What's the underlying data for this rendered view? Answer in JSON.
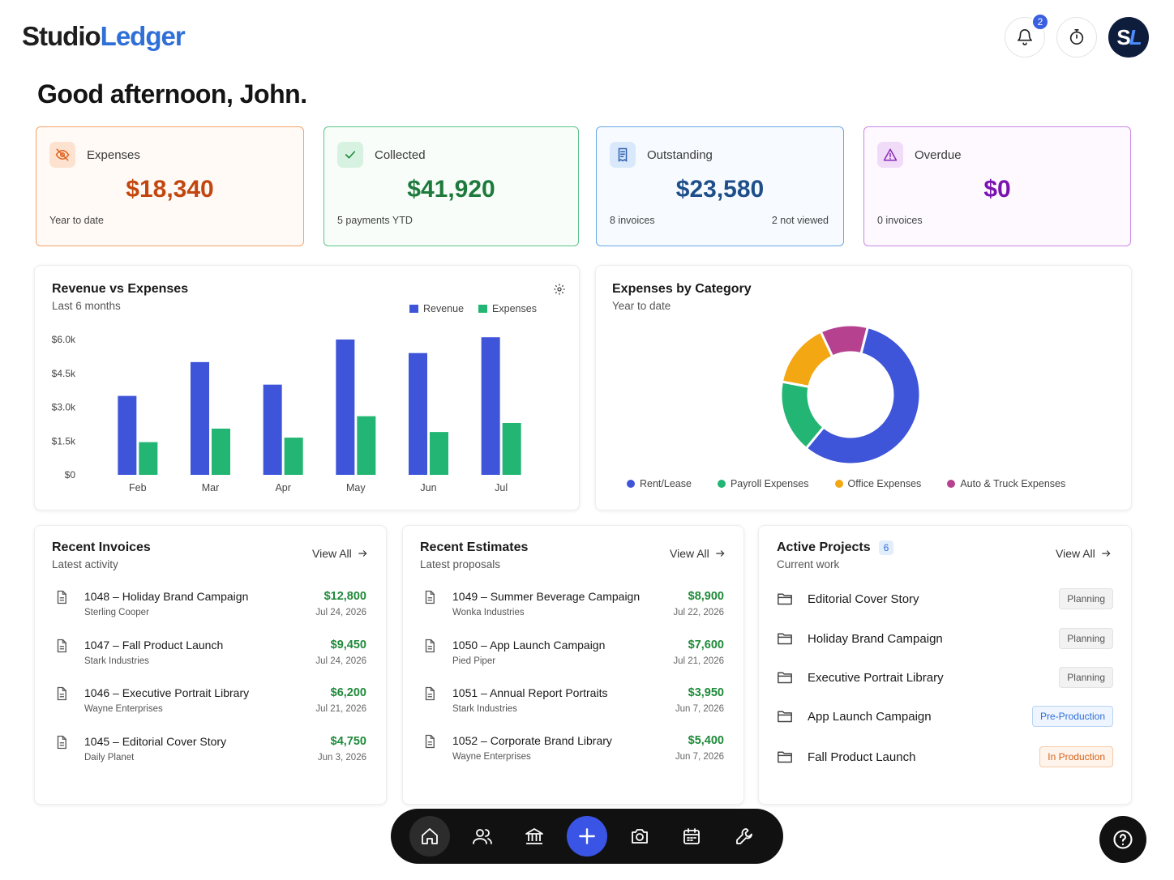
{
  "brand": {
    "part1": "Studio",
    "part2": "Ledger"
  },
  "header": {
    "notifications_count": "2",
    "avatar_initials_1": "S",
    "avatar_initials_2": "L"
  },
  "greeting": "Good afternoon, John.",
  "stats": [
    {
      "label": "Expenses",
      "value": "$18,340",
      "foot_left": "Year to date",
      "foot_right": ""
    },
    {
      "label": "Collected",
      "value": "$41,920",
      "foot_left": "5 payments YTD",
      "foot_right": ""
    },
    {
      "label": "Outstanding",
      "value": "$23,580",
      "foot_left": "8 invoices",
      "foot_right": "2 not viewed"
    },
    {
      "label": "Overdue",
      "value": "$0",
      "foot_left": "0 invoices",
      "foot_right": ""
    }
  ],
  "revenue_chart": {
    "title": "Revenue vs Expenses",
    "subtitle": "Last 6 months",
    "legend": [
      "Revenue",
      "Expenses"
    ]
  },
  "category_chart": {
    "title": "Expenses by Category",
    "subtitle": "Year to date",
    "legend": [
      "Rent/Lease",
      "Payroll Expenses",
      "Office Expenses",
      "Auto & Truck Expenses"
    ]
  },
  "chart_data": [
    {
      "type": "bar",
      "title": "Revenue vs Expenses",
      "categories": [
        "Feb",
        "Mar",
        "Apr",
        "May",
        "Jun",
        "Jul"
      ],
      "series": [
        {
          "name": "Revenue",
          "color": "#3f55d9",
          "values": [
            3500,
            5000,
            4000,
            6000,
            5400,
            6100
          ]
        },
        {
          "name": "Expenses",
          "color": "#22b573",
          "values": [
            1450,
            2050,
            1650,
            2600,
            1900,
            2300
          ]
        }
      ],
      "yticks": [
        "$0",
        "$1.5k",
        "$3.0k",
        "$4.5k",
        "$6.0k"
      ],
      "ylim": [
        0,
        6000
      ],
      "grid": false,
      "legend": "top-right"
    },
    {
      "type": "pie",
      "title": "Expenses by Category",
      "categories": [
        "Rent/Lease",
        "Payroll Expenses",
        "Office Expenses",
        "Auto & Truck Expenses"
      ],
      "values": [
        57,
        17,
        15,
        11
      ],
      "colors": [
        "#3f55d9",
        "#22b573",
        "#f3a712",
        "#b6418f"
      ],
      "legend": "bottom"
    }
  ],
  "invoices": {
    "title": "Recent Invoices",
    "subtitle": "Latest activity",
    "view_all": "View All",
    "items": [
      {
        "title": "1048  –  Holiday Brand Campaign",
        "client": "Sterling Cooper",
        "amount": "$12,800",
        "date": "Jul 24, 2026"
      },
      {
        "title": "1047  –  Fall Product Launch",
        "client": "Stark Industries",
        "amount": "$9,450",
        "date": "Jul 24, 2026"
      },
      {
        "title": "1046  –  Executive Portrait Library",
        "client": "Wayne Enterprises",
        "amount": "$6,200",
        "date": "Jul 21, 2026"
      },
      {
        "title": "1045  –  Editorial Cover Story",
        "client": "Daily Planet",
        "amount": "$4,750",
        "date": "Jun 3, 2026"
      }
    ]
  },
  "estimates": {
    "title": "Recent Estimates",
    "subtitle": "Latest proposals",
    "view_all": "View All",
    "items": [
      {
        "title": "1049  –  Summer Beverage Campaign",
        "client": "Wonka Industries",
        "amount": "$8,900",
        "date": "Jul 22, 2026"
      },
      {
        "title": "1050  –  App Launch Campaign",
        "client": "Pied Piper",
        "amount": "$7,600",
        "date": "Jul 21, 2026"
      },
      {
        "title": "1051  –  Annual Report Portraits",
        "client": "Stark Industries",
        "amount": "$3,950",
        "date": "Jun 7, 2026"
      },
      {
        "title": "1052  –  Corporate Brand Library",
        "client": "Wayne Enterprises",
        "amount": "$5,400",
        "date": "Jun 7, 2026"
      }
    ]
  },
  "projects": {
    "title": "Active Projects",
    "count": "6",
    "subtitle": "Current work",
    "view_all": "View All",
    "items": [
      {
        "name": "Editorial Cover Story",
        "status": "Planning"
      },
      {
        "name": "Holiday Brand Campaign",
        "status": "Planning"
      },
      {
        "name": "Executive Portrait Library",
        "status": "Planning"
      },
      {
        "name": "App Launch Campaign",
        "status": "Pre-Production"
      },
      {
        "name": "Fall Product Launch",
        "status": "In Production"
      }
    ]
  },
  "dock": [
    "home-icon",
    "people-icon",
    "bank-icon",
    "plus-icon",
    "camera-icon",
    "calendar-icon",
    "wrench-icon"
  ],
  "help_icon": "question-icon"
}
